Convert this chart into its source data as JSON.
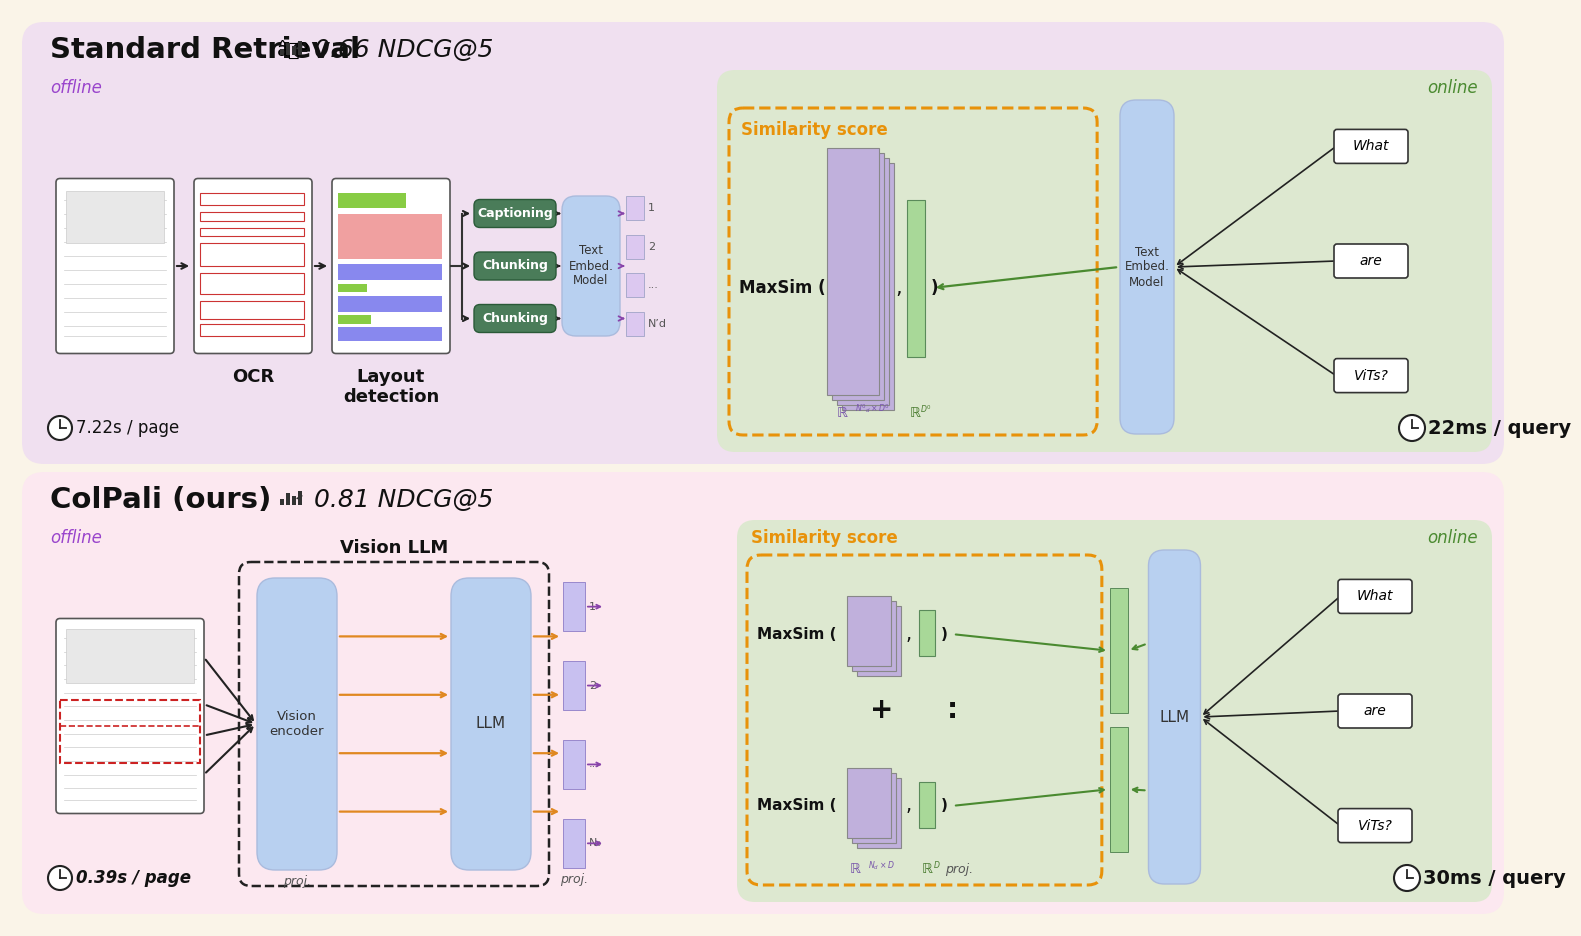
{
  "bg_color": "#faf4e8",
  "top_panel_bg": "#f0e0f0",
  "top_online_bg": "#dde8d0",
  "bot_panel_bg": "#fce8f0",
  "bot_online_bg": "#dde8d0",
  "offline_color": "#9944cc",
  "online_color": "#4a8a30",
  "orange_color": "#e8920a",
  "chunk_green": "#4a7c59",
  "arrow_dark": "#222222",
  "arrow_orange": "#e08820",
  "arrow_purple": "#8844aa",
  "arrow_green": "#4a8a30",
  "embed_blue": "#b8d0f0",
  "embed_purple": "#d0c0e8",
  "embed_green_rect": "#a8d898",
  "text_dark": "#111111",
  "text_gray": "#555555",
  "math_purple": "#7755aa",
  "math_green": "#4a7c30",
  "top_title": "Standard Retrieval",
  "top_metric": "0.66 NDCG@5",
  "top_offline_time": "7.22s / page",
  "top_online_time": "22ms / query",
  "top_ocr": "OCR",
  "top_layout": "Layout\ndetection",
  "top_text_embed": "Text\nEmbed.\nModel",
  "top_captioning": "Captioning",
  "top_chunking1": "Chunking",
  "top_chunking2": "Chunking",
  "top_similarity": "Similarity score",
  "top_maxsim": "MaxSim (",
  "top_query": [
    "What",
    "are",
    "ViTs?"
  ],
  "top_embed_labels": [
    "1",
    "2",
    "...",
    "N’d"
  ],
  "bot_title": "ColPali (ours)",
  "bot_metric": "0.81 NDCG@5",
  "bot_offline_time": "0.39s / page",
  "bot_online_time": "30ms / query",
  "bot_vision_llm": "Vision LLM",
  "bot_vision_enc": "Vision\nencoder",
  "bot_llm": "LLM",
  "bot_proj1": "proj.",
  "bot_proj2": "proj.",
  "bot_similarity": "Similarity score",
  "bot_maxsim": "MaxSim (",
  "bot_query": [
    "What",
    "are",
    "ViTs?"
  ],
  "bot_embed_labels": [
    "1",
    "2",
    "...",
    "N₆"
  ],
  "offline_label": "offline",
  "online_label": "online"
}
